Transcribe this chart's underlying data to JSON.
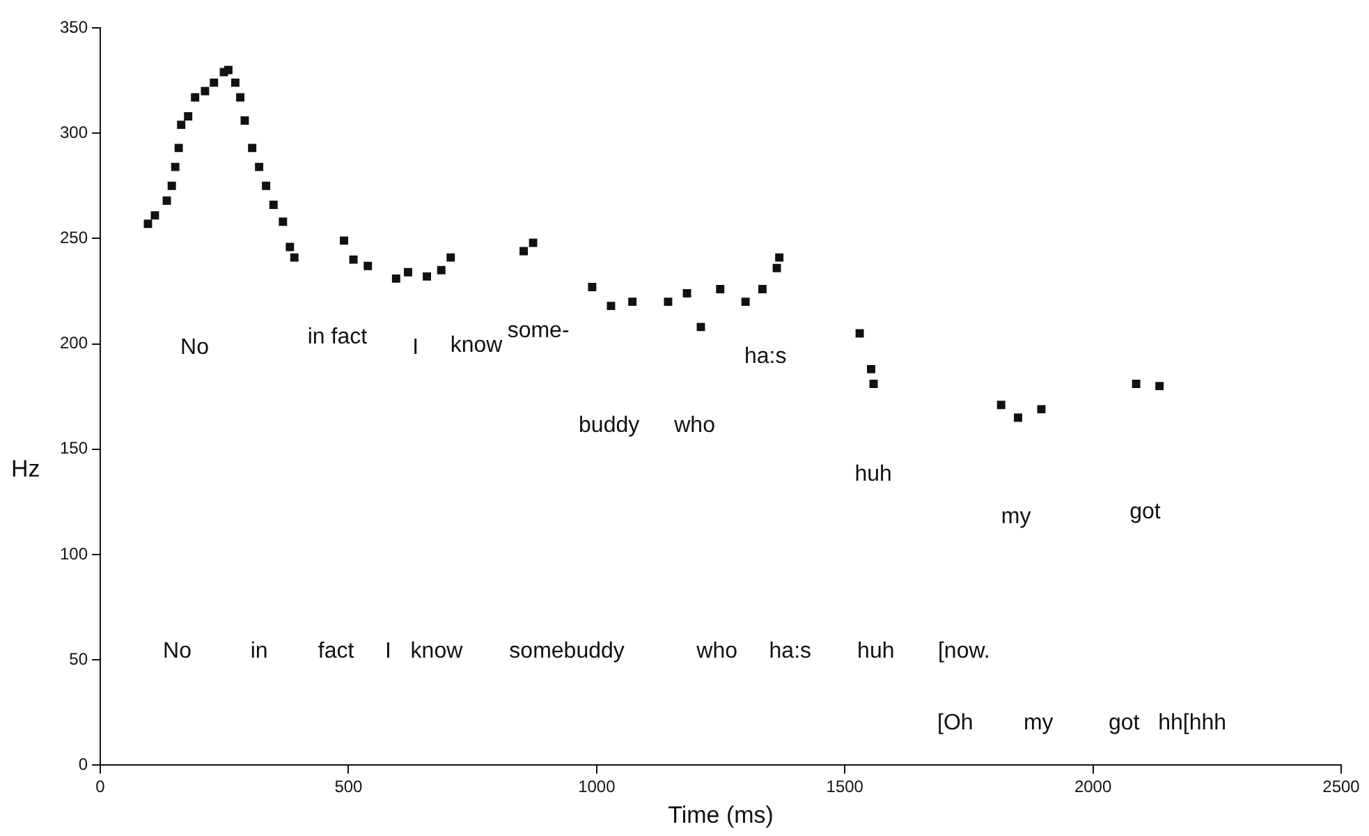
{
  "chart_data": {
    "type": "scatter",
    "xlabel": "Time (ms)",
    "ylabel": "Hz",
    "marker": "square",
    "grid": false,
    "legend": false,
    "xlim": [
      0,
      2500
    ],
    "xticks": [
      0,
      500,
      1000,
      1500,
      2000,
      2500
    ],
    "ylim": [
      0,
      350
    ],
    "yticks": [
      0,
      50,
      100,
      150,
      200,
      250,
      300,
      350
    ],
    "series": [
      {
        "color": "#111111",
        "x": [
          96,
          110,
          134,
          144,
          151,
          158,
          163,
          177,
          191,
          211,
          229,
          249,
          258,
          272,
          282,
          291,
          306,
          320,
          334,
          349,
          368,
          382,
          391,
          491,
          510,
          539,
          596,
          620,
          658,
          687,
          706,
          853,
          872,
          991,
          1029,
          1072,
          1144,
          1182,
          1210,
          1249,
          1300,
          1334,
          1363,
          1368,
          1530,
          1553,
          1558,
          1815,
          1849,
          1896,
          2087,
          2134
        ],
        "values": [
          257,
          261,
          268,
          275,
          284,
          293,
          304,
          308,
          317,
          320,
          324,
          329,
          330,
          324,
          317,
          306,
          293,
          284,
          275,
          266,
          258,
          246,
          241,
          249,
          240,
          237,
          231,
          234,
          232,
          235,
          241,
          244,
          248,
          227,
          218,
          220,
          220,
          224,
          208,
          226,
          220,
          226,
          236,
          241,
          205,
          188,
          181,
          171,
          165,
          169,
          181,
          180
        ]
      }
    ],
    "annotations": [
      "No",
      "in fact",
      "I",
      "know",
      "some-",
      "buddy",
      "who",
      "ha:s",
      "huh",
      "my",
      "got",
      "No",
      "in",
      "fact",
      "I",
      "know",
      "somebuddy",
      "who",
      "ha:s",
      "huh",
      "[now.",
      "[Oh",
      "my",
      "got",
      "hh[hhh"
    ]
  }
}
